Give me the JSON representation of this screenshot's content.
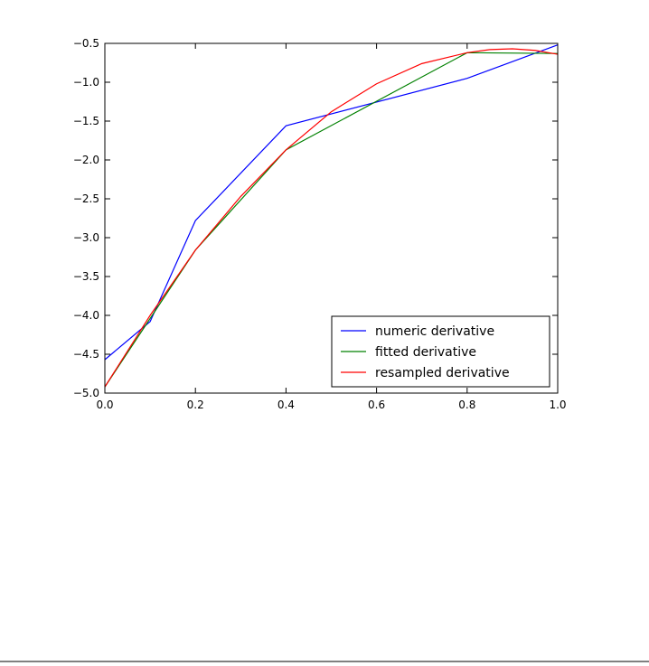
{
  "chart_data": {
    "type": "line",
    "xlim": [
      0,
      1
    ],
    "ylim": [
      -5,
      -0.5
    ],
    "xticks": [
      {
        "value": 0,
        "label": "0.0"
      },
      0.2,
      0.4,
      0.6,
      0.8,
      {
        "value": 1,
        "label": "1.0"
      }
    ],
    "yticks": [
      {
        "value": -5,
        "label": "−5.0"
      },
      {
        "value": -4.5,
        "label": "−4.5"
      },
      {
        "value": -4,
        "label": "−4.0"
      },
      {
        "value": -3.5,
        "label": "−3.5"
      },
      {
        "value": -3,
        "label": "−3.0"
      },
      {
        "value": -2.5,
        "label": "−2.5"
      },
      {
        "value": -2,
        "label": "−2.0"
      },
      {
        "value": -1.5,
        "label": "−1.5"
      },
      {
        "value": -1,
        "label": "−1.0"
      },
      {
        "value": -0.5,
        "label": "−0.5"
      }
    ],
    "grid": false,
    "legend": "lower right",
    "series": [
      {
        "name": "numeric derivative",
        "color": "#0000ff",
        "x": [
          0,
          0.1,
          0.2,
          0.4,
          0.8,
          1.0
        ],
        "values": [
          -4.57,
          -4.08,
          -2.78,
          -1.56,
          -0.95,
          -0.52
        ]
      },
      {
        "name": "fitted derivative",
        "color": "#008000",
        "x": [
          0,
          0.2,
          0.4,
          0.8,
          1.0
        ],
        "values": [
          -4.92,
          -3.16,
          -1.87,
          -0.62,
          -0.63
        ]
      },
      {
        "name": "resampled derivative",
        "color": "#ff0000",
        "x": [
          0,
          0.1,
          0.2,
          0.3,
          0.4,
          0.5,
          0.6,
          0.7,
          0.8,
          0.85,
          0.9,
          0.95,
          1.0
        ],
        "values": [
          -4.92,
          -4.0,
          -3.16,
          -2.47,
          -1.87,
          -1.38,
          -1.02,
          -0.76,
          -0.62,
          -0.58,
          -0.57,
          -0.59,
          -0.64
        ]
      }
    ]
  }
}
